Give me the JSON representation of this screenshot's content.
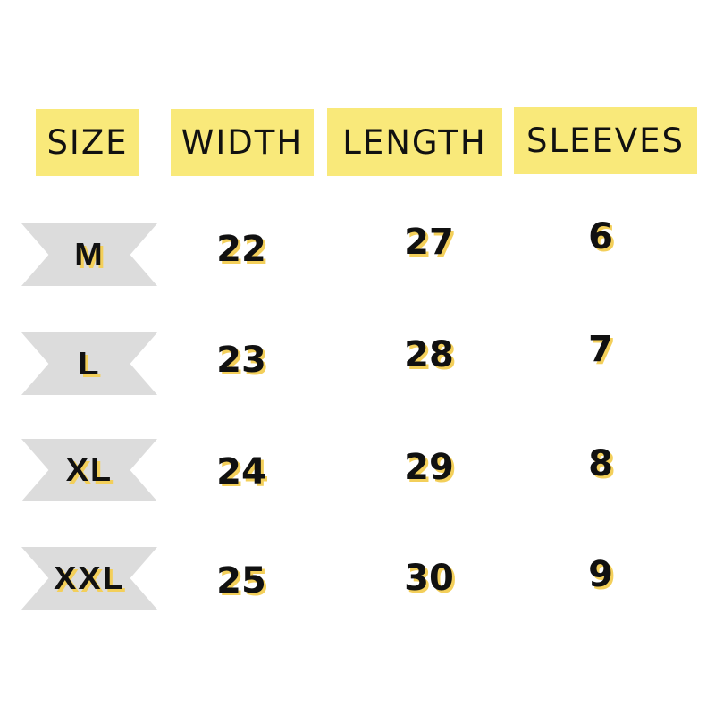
{
  "headers": [
    "SIZE",
    "WIDTH",
    "LENGTH",
    "SLEEVES"
  ],
  "rows": [
    {
      "size": "M",
      "width": "22",
      "length": "27",
      "sleeves": "6"
    },
    {
      "size": "L",
      "width": "23",
      "length": "28",
      "sleeves": "7"
    },
    {
      "size": "XL",
      "width": "24",
      "length": "29",
      "sleeves": "8"
    },
    {
      "size": "XXL",
      "width": "25",
      "length": "30",
      "sleeves": "9"
    }
  ],
  "colors": {
    "header_bg": "#f9e97a",
    "ribbon_bg": "#dcdcdc",
    "shadow": "#f3cf5a"
  }
}
